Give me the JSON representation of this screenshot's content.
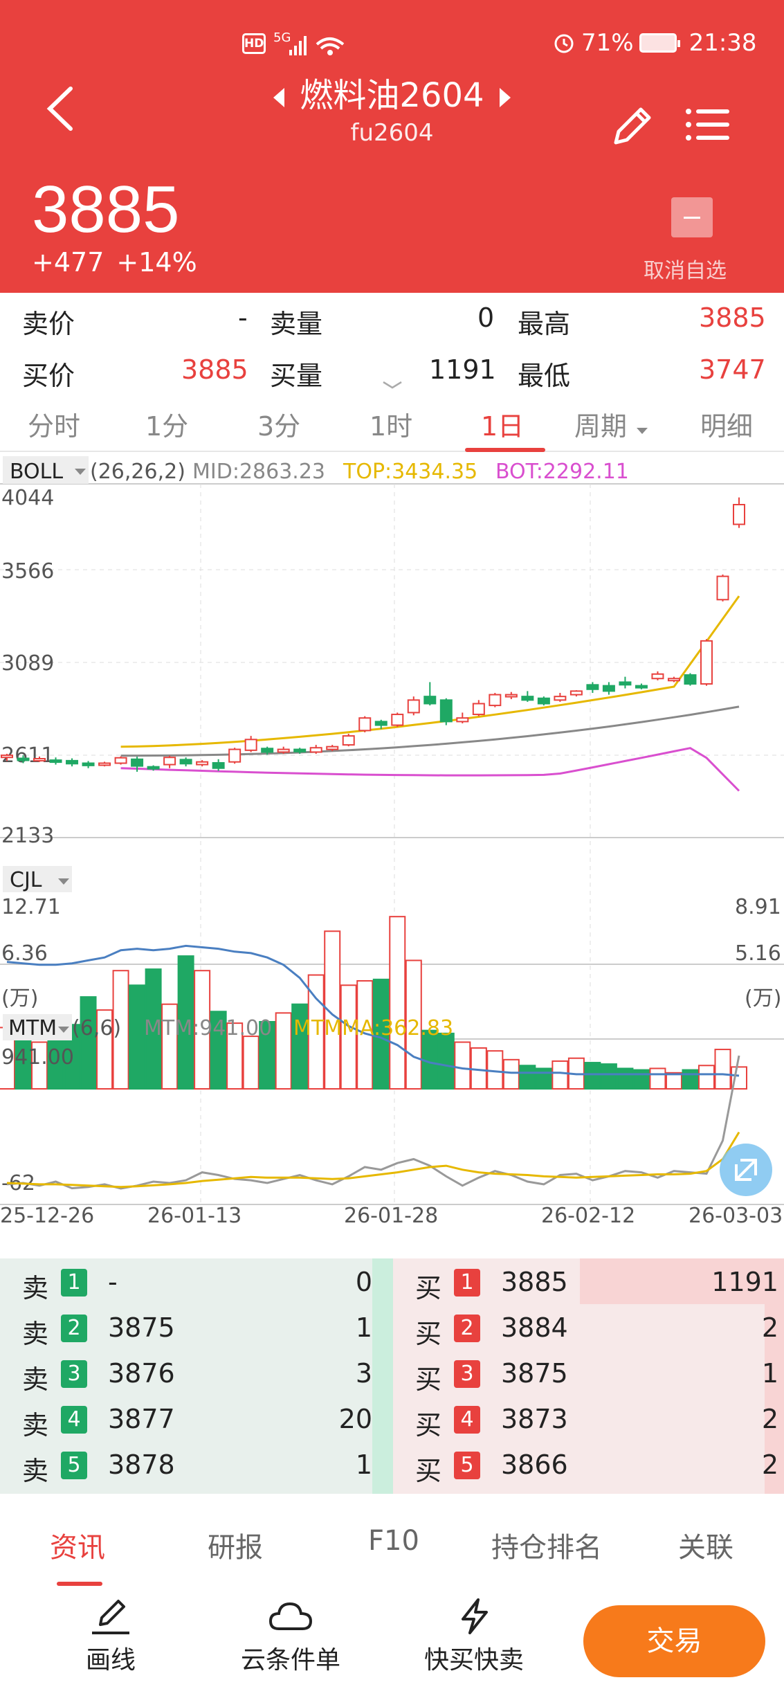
{
  "status_bar": {
    "hd": "HD",
    "network": "5G",
    "battery": "71%",
    "time": "21:38"
  },
  "header": {
    "title": "燃料油2604",
    "code": "fu2604",
    "price": "3885",
    "change": "+477",
    "change_pct": "+14%",
    "fav_label": "取消自选"
  },
  "quote": {
    "sell_price_label": "卖价",
    "sell_price": "-",
    "sell_vol_label": "卖量",
    "sell_vol": "0",
    "high_label": "最高",
    "high": "3885",
    "buy_price_label": "买价",
    "buy_price": "3885",
    "buy_vol_label": "买量",
    "buy_vol": "1191",
    "low_label": "最低",
    "low": "3747"
  },
  "period_tabs": [
    "分时",
    "1分",
    "3分",
    "1时",
    "1日",
    "周期",
    "明细"
  ],
  "boll": {
    "name": "BOLL",
    "params": "(26,26,2)",
    "mid": "MID:2863.23",
    "top": "TOP:3434.35",
    "bot": "BOT:2292.11",
    "y_labels": [
      "4044",
      "3566",
      "3089",
      "2611",
      "2133"
    ]
  },
  "cjl": {
    "name": "CJL",
    "left_labels": [
      "12.71",
      "6.36",
      "(万)"
    ],
    "right_labels": [
      "8.91",
      "5.16",
      "(万)"
    ]
  },
  "mtm": {
    "name": "MTM",
    "params": "(6,6)",
    "mtm": "MTM:941.00",
    "mtmma": "MTMMA:362.83",
    "y_labels": [
      "941.00",
      "-62"
    ]
  },
  "dates": [
    "25-12-26",
    "26-01-13",
    "26-01-28",
    "26-02-12",
    "26-03-03"
  ],
  "chart_data": {
    "type": "candlestick",
    "x": [
      "25-12-26",
      "26-01-13",
      "26-01-28",
      "26-02-12",
      "26-03-03"
    ],
    "ylim": [
      2133,
      4044
    ],
    "series": [
      {
        "name": "MID",
        "last": 2863.23
      },
      {
        "name": "TOP",
        "last": 3434.35
      },
      {
        "name": "BOT",
        "last": 2292.11
      }
    ],
    "candles": [
      [
        2580,
        2592,
        2560,
        2600
      ],
      [
        2575,
        2565,
        2548,
        2592
      ],
      [
        2570,
        2573,
        2555,
        2585
      ],
      [
        2565,
        2560,
        2540,
        2580
      ],
      [
        2562,
        2545,
        2530,
        2575
      ],
      [
        2548,
        2535,
        2520,
        2560
      ],
      [
        2538,
        2548,
        2530,
        2556
      ],
      [
        2548,
        2578,
        2540,
        2586
      ],
      [
        2570,
        2532,
        2500,
        2584
      ],
      [
        2528,
        2520,
        2506,
        2536
      ],
      [
        2540,
        2580,
        2520,
        2590
      ],
      [
        2568,
        2545,
        2530,
        2580
      ],
      [
        2540,
        2555,
        2530,
        2565
      ],
      [
        2550,
        2520,
        2505,
        2570
      ],
      [
        2555,
        2625,
        2545,
        2634
      ],
      [
        2620,
        2680,
        2610,
        2700
      ],
      [
        2630,
        2610,
        2595,
        2640
      ],
      [
        2610,
        2625,
        2600,
        2640
      ],
      [
        2625,
        2612,
        2600,
        2634
      ],
      [
        2610,
        2634,
        2600,
        2650
      ],
      [
        2625,
        2640,
        2615,
        2650
      ],
      [
        2650,
        2700,
        2642,
        2712
      ],
      [
        2730,
        2800,
        2720,
        2810
      ],
      [
        2780,
        2760,
        2738,
        2790
      ],
      [
        2760,
        2820,
        2750,
        2830
      ],
      [
        2830,
        2900,
        2815,
        2920
      ],
      [
        2920,
        2880,
        2870,
        3000
      ],
      [
        2900,
        2780,
        2760,
        2910
      ],
      [
        2780,
        2800,
        2770,
        2830
      ],
      [
        2820,
        2880,
        2810,
        2900
      ],
      [
        2870,
        2930,
        2860,
        2940
      ],
      [
        2920,
        2930,
        2905,
        2945
      ],
      [
        2920,
        2900,
        2890,
        2950
      ],
      [
        2910,
        2880,
        2870,
        2920
      ],
      [
        2900,
        2920,
        2890,
        2940
      ],
      [
        2930,
        2950,
        2920,
        2955
      ],
      [
        2985,
        2960,
        2940,
        3000
      ],
      [
        2980,
        2950,
        2930,
        3000
      ],
      [
        3000,
        2985,
        2965,
        3030
      ],
      [
        2980,
        2970,
        2960,
        2992
      ],
      [
        3020,
        3045,
        3010,
        3060
      ],
      [
        3010,
        3020,
        3000,
        3030
      ],
      [
        3040,
        2990,
        2980,
        3050
      ],
      [
        2990,
        3230,
        2980,
        3240
      ],
      [
        3460,
        3590,
        3450,
        3600
      ],
      [
        3880,
        3990,
        3860,
        4030
      ]
    ],
    "volume_unit": "万",
    "volume_ylim": [
      0,
      12.71
    ]
  },
  "order_book": {
    "sell": [
      {
        "label": "卖",
        "level": "1",
        "price": "-",
        "vol": "0"
      },
      {
        "label": "卖",
        "level": "2",
        "price": "3875",
        "vol": "1"
      },
      {
        "label": "卖",
        "level": "3",
        "price": "3876",
        "vol": "3"
      },
      {
        "label": "卖",
        "level": "4",
        "price": "3877",
        "vol": "20"
      },
      {
        "label": "卖",
        "level": "5",
        "price": "3878",
        "vol": "1"
      }
    ],
    "buy": [
      {
        "label": "买",
        "level": "1",
        "price": "3885",
        "vol": "1191"
      },
      {
        "label": "买",
        "level": "2",
        "price": "3884",
        "vol": "2"
      },
      {
        "label": "买",
        "level": "3",
        "price": "3875",
        "vol": "1"
      },
      {
        "label": "买",
        "level": "4",
        "price": "3873",
        "vol": "2"
      },
      {
        "label": "买",
        "level": "5",
        "price": "3866",
        "vol": "2"
      }
    ]
  },
  "info_tabs": [
    "资讯",
    "研报",
    "F10",
    "持仓排名",
    "关联"
  ],
  "toolbar": {
    "draw": "画线",
    "cloud": "云条件单",
    "quick": "快买快卖",
    "trade": "交易"
  },
  "colors": {
    "header_red": "#e8413e",
    "up_red": "#e8413e",
    "down_green": "#1fa864",
    "trade_orange": "#f77a1b",
    "boll_top": "#e6b800",
    "boll_bot": "#d94fcf"
  }
}
